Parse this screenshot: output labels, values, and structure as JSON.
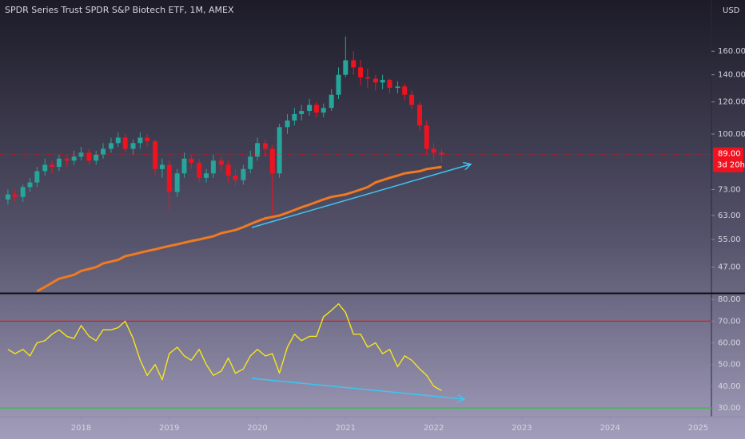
{
  "header": {
    "title": "SPDR Series Trust SPDR S&P Biotech ETF, 1M, AMEX",
    "currency": "USD",
    "countdown": "3d 20h"
  },
  "chart_data": [
    {
      "type": "candlestick",
      "x": [
        2017.17,
        2017.25,
        2017.34,
        2017.42,
        2017.5,
        2017.59,
        2017.67,
        2017.75,
        2017.84,
        2017.92,
        2018.0,
        2018.09,
        2018.17,
        2018.25,
        2018.34,
        2018.42,
        2018.5,
        2018.59,
        2018.67,
        2018.75,
        2018.84,
        2018.92,
        2019.0,
        2019.09,
        2019.17,
        2019.25,
        2019.34,
        2019.42,
        2019.5,
        2019.59,
        2019.67,
        2019.75,
        2019.84,
        2019.92,
        2020.0,
        2020.09,
        2020.17,
        2020.25,
        2020.34,
        2020.42,
        2020.5,
        2020.59,
        2020.67,
        2020.75,
        2020.84,
        2020.92,
        2021.0,
        2021.09,
        2021.17,
        2021.25,
        2021.34,
        2021.42,
        2021.5,
        2021.59,
        2021.67,
        2021.75,
        2021.84,
        2021.92,
        2022.0,
        2022.09
      ],
      "open": [
        69,
        71,
        70,
        74,
        76,
        81,
        84,
        83,
        87,
        86,
        88,
        90,
        86,
        89,
        92,
        95,
        98,
        92,
        95,
        98,
        96,
        82,
        84,
        72,
        80,
        87,
        85,
        78,
        80,
        86,
        84,
        79,
        77,
        82,
        88,
        95,
        92,
        80,
        104,
        108,
        112,
        114,
        118,
        113,
        116,
        125,
        140,
        152,
        146,
        138,
        137,
        134,
        136,
        130,
        131,
        125,
        118,
        105,
        92,
        90
      ],
      "high": [
        73,
        73,
        75,
        78,
        83,
        87,
        86,
        89,
        89,
        91,
        93,
        92,
        91,
        95,
        98,
        101,
        100,
        97,
        101,
        100,
        97,
        87,
        86,
        82,
        90,
        89,
        87,
        82,
        89,
        88,
        86,
        82,
        84,
        91,
        98,
        97,
        94,
        106,
        112,
        116,
        118,
        122,
        120,
        119,
        129,
        146,
        174,
        160,
        152,
        145,
        140,
        140,
        137,
        135,
        133,
        128,
        120,
        108,
        95,
        92
      ],
      "low": [
        67,
        68,
        68,
        72,
        74,
        79,
        80,
        81,
        83,
        84,
        86,
        84,
        84,
        87,
        90,
        93,
        90,
        89,
        92,
        93,
        79,
        78,
        65,
        70,
        78,
        82,
        76,
        76,
        78,
        81,
        76,
        74,
        75,
        80,
        86,
        88,
        63,
        78,
        100,
        105,
        108,
        111,
        110,
        110,
        114,
        122,
        138,
        140,
        132,
        130,
        128,
        129,
        126,
        126,
        121,
        115,
        102,
        89,
        86,
        85
      ],
      "close": [
        71,
        70,
        74,
        76,
        81,
        84,
        83,
        87,
        86,
        88,
        90,
        86,
        89,
        92,
        95,
        98,
        92,
        95,
        98,
        96,
        82,
        84,
        72,
        80,
        87,
        85,
        78,
        80,
        86,
        84,
        79,
        77,
        82,
        88,
        95,
        92,
        80,
        104,
        108,
        112,
        114,
        118,
        113,
        116,
        125,
        140,
        152,
        146,
        138,
        137,
        134,
        136,
        130,
        131,
        125,
        118,
        105,
        92,
        90,
        89
      ],
      "up_color": "#26a69a",
      "down_color": "#f0131f",
      "ma": {
        "color": "#f07a22",
        "values": [
          null,
          null,
          null,
          null,
          41,
          42,
          43,
          44,
          44.5,
          45,
          46,
          46.5,
          47,
          48,
          48.5,
          49,
          50,
          50.5,
          51,
          51.5,
          52,
          52.5,
          53,
          53.5,
          54,
          54.5,
          55,
          55.5,
          56,
          57,
          57.5,
          58,
          59,
          60,
          61,
          62,
          62.5,
          63,
          64,
          65,
          66,
          67,
          68,
          69,
          70,
          70.5,
          71,
          72,
          73,
          74,
          76,
          77,
          78,
          79,
          80,
          80.5,
          81,
          82,
          82.5,
          83
        ]
      },
      "last_price": {
        "value": 89,
        "label": "89.00",
        "color": "#f0131f"
      },
      "log_scale": true,
      "xlim": [
        2017.08,
        2025.15
      ],
      "ylim": [
        40.6,
        214
      ],
      "yticks": [
        {
          "value": 47,
          "label": "47.00"
        },
        {
          "value": 55,
          "label": "55.00"
        },
        {
          "value": 63,
          "label": "63.00"
        },
        {
          "value": 73,
          "label": "73.00"
        },
        {
          "value": 100,
          "label": "100.00"
        },
        {
          "value": 120,
          "label": "120.00"
        },
        {
          "value": 140,
          "label": "140.00"
        },
        {
          "value": 160,
          "label": "160.00"
        }
      ]
    },
    {
      "type": "line",
      "x": [
        2017.17,
        2017.25,
        2017.34,
        2017.42,
        2017.5,
        2017.59,
        2017.67,
        2017.75,
        2017.84,
        2017.92,
        2018.0,
        2018.09,
        2018.17,
        2018.25,
        2018.34,
        2018.42,
        2018.5,
        2018.59,
        2018.67,
        2018.75,
        2018.84,
        2018.92,
        2019.0,
        2019.09,
        2019.17,
        2019.25,
        2019.34,
        2019.42,
        2019.5,
        2019.59,
        2019.67,
        2019.75,
        2019.84,
        2019.92,
        2020.0,
        2020.09,
        2020.17,
        2020.25,
        2020.34,
        2020.42,
        2020.5,
        2020.59,
        2020.67,
        2020.75,
        2020.84,
        2020.92,
        2021.0,
        2021.09,
        2021.17,
        2021.25,
        2021.34,
        2021.42,
        2021.5,
        2021.59,
        2021.67,
        2021.75,
        2021.84,
        2021.92,
        2022.0,
        2022.09
      ],
      "series": [
        {
          "color": "#f5e51c",
          "values": [
            57,
            55,
            57,
            54,
            60,
            61,
            64,
            66,
            63,
            62,
            68,
            63,
            61,
            66,
            66,
            67,
            70,
            62,
            52,
            45,
            50,
            43,
            55,
            58,
            54,
            52,
            57,
            50,
            45,
            47,
            53,
            46,
            48,
            54,
            57,
            54,
            55,
            46,
            58,
            64,
            61,
            63,
            63,
            72,
            75,
            78,
            74,
            64,
            64,
            58,
            60,
            55,
            57,
            49,
            54,
            52,
            48,
            45,
            40,
            38
          ]
        }
      ],
      "hlines": [
        {
          "value": 70,
          "color": "#e01818"
        },
        {
          "value": 30,
          "color": "#2fc23a"
        }
      ],
      "xlim": [
        2017.08,
        2025.15
      ],
      "xticks": [
        2018,
        2019,
        2020,
        2021,
        2022,
        2023,
        2024,
        2025
      ],
      "ylim": [
        26,
        83
      ],
      "yticks": [
        {
          "value": 30,
          "label": "30.00"
        },
        {
          "value": 40,
          "label": "40.00"
        },
        {
          "value": 50,
          "label": "50.00"
        },
        {
          "value": 60,
          "label": "60.00"
        },
        {
          "value": 70,
          "label": "70.00"
        },
        {
          "value": 80,
          "label": "80.00"
        }
      ]
    }
  ]
}
